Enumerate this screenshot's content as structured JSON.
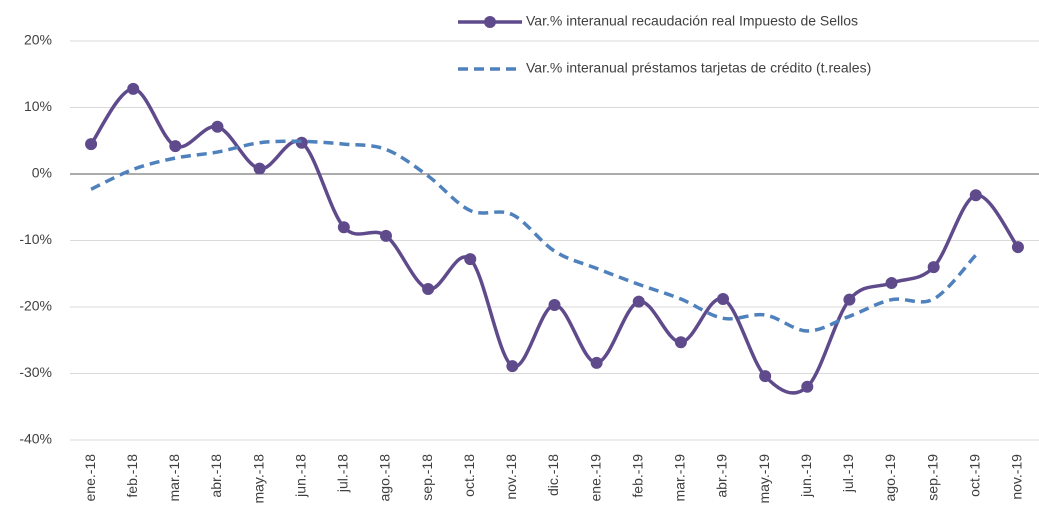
{
  "chart_data": {
    "type": "line",
    "categories": [
      "ene.-18",
      "feb.-18",
      "mar.-18",
      "abr.-18",
      "may.-18",
      "jun.-18",
      "jul.-18",
      "ago.-18",
      "sep.-18",
      "oct.-18",
      "nov.-18",
      "dic.-18",
      "ene.-19",
      "feb.-19",
      "mar.-19",
      "abr.-19",
      "may.-19",
      "jun.-19",
      "jul.-19",
      "ago.-19",
      "sep.-19",
      "oct.-19",
      "nov.-19"
    ],
    "series": [
      {
        "name": "Var.% interanual recaudación real Impuesto de Sellos",
        "color": "#5f4b8b",
        "marker": true,
        "dashed": false,
        "values": [
          4.5,
          12.8,
          4.2,
          7.1,
          0.8,
          4.7,
          -8.0,
          -9.3,
          -17.3,
          -12.8,
          -28.9,
          -19.7,
          -28.4,
          -19.2,
          -25.3,
          -18.8,
          -30.4,
          -32.0,
          -18.9,
          -16.4,
          -14.0,
          -3.2,
          -11.0
        ]
      },
      {
        "name": "Var.% interanual préstamos tarjetas de crédito (t.reales)",
        "color": "#4f81bd",
        "marker": false,
        "dashed": true,
        "values": [
          -2.3,
          0.7,
          2.4,
          3.3,
          4.7,
          4.9,
          4.5,
          3.7,
          -0.3,
          -5.5,
          -6.1,
          -11.6,
          -14.2,
          -16.6,
          -18.8,
          -21.7,
          -21.2,
          -23.6,
          -21.4,
          -18.9,
          -18.8,
          -12.2,
          null
        ]
      }
    ],
    "ylim": [
      -40,
      20
    ],
    "yticks": [
      {
        "value": -40,
        "label": "-40%"
      },
      {
        "value": -30,
        "label": "-30%"
      },
      {
        "value": -20,
        "label": "-20%"
      },
      {
        "value": -10,
        "label": "-10%"
      },
      {
        "value": 0,
        "label": "0%"
      },
      {
        "value": 10,
        "label": "10%"
      },
      {
        "value": 20,
        "label": "20%"
      }
    ],
    "grid": true
  }
}
